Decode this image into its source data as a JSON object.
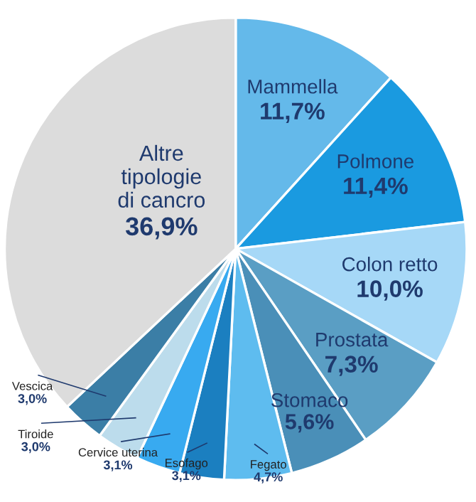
{
  "chart_data": {
    "type": "pie",
    "categories": [
      "Mammella",
      "Polmone",
      "Colon retto",
      "Prostata",
      "Stomaco",
      "Fegato",
      "Esofago",
      "Cervice uterina",
      "Tiroide",
      "Vescica",
      "Altre tipologie di cancro"
    ],
    "values": [
      11.7,
      11.4,
      10.0,
      7.3,
      5.6,
      4.7,
      3.1,
      3.1,
      3.0,
      3.0,
      36.9
    ],
    "value_labels": [
      "11,7%",
      "11,4%",
      "10,0%",
      "7,3%",
      "5,6%",
      "4,7%",
      "3,1%",
      "3,1%",
      "3,0%",
      "3,0%",
      "36,9%"
    ],
    "colors": [
      "#64b9ea",
      "#1a9ae0",
      "#a6d8f7",
      "#5a9ec4",
      "#4a8fb8",
      "#5ebcef",
      "#1b7fc0",
      "#38aaf0",
      "#bcdcec",
      "#3b7ea6",
      "#dcdcdc"
    ]
  }
}
